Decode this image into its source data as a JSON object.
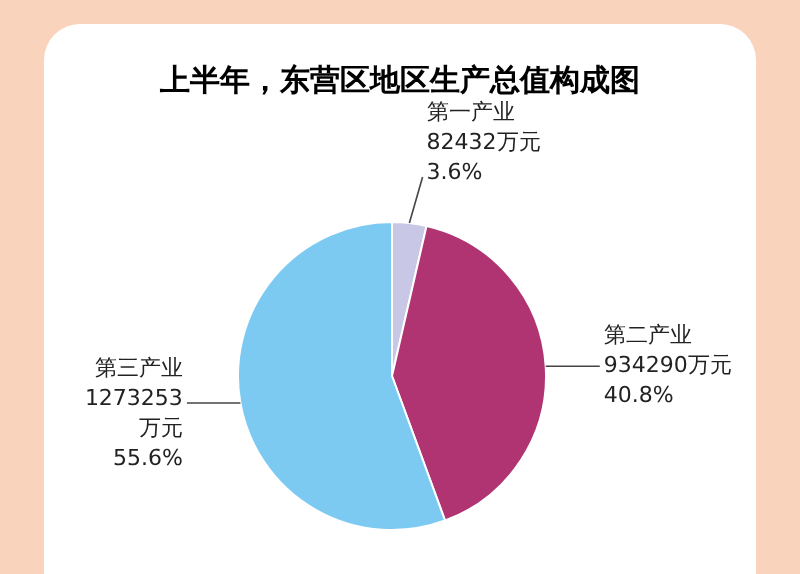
{
  "chart_data": {
    "type": "pie",
    "title": "上半年，东营区地区生产总值构成图",
    "categories": [
      "第一产业",
      "第二产业",
      "第三产业"
    ],
    "values": [
      82432,
      934290,
      1273253
    ],
    "colors": [
      "#c8c8e6",
      "#b03472",
      "#7ccaf2"
    ],
    "value_labels": [
      "82432万元\n3.6%",
      "934290万元\n40.8%",
      "1273253万元\n55.6%"
    ]
  }
}
